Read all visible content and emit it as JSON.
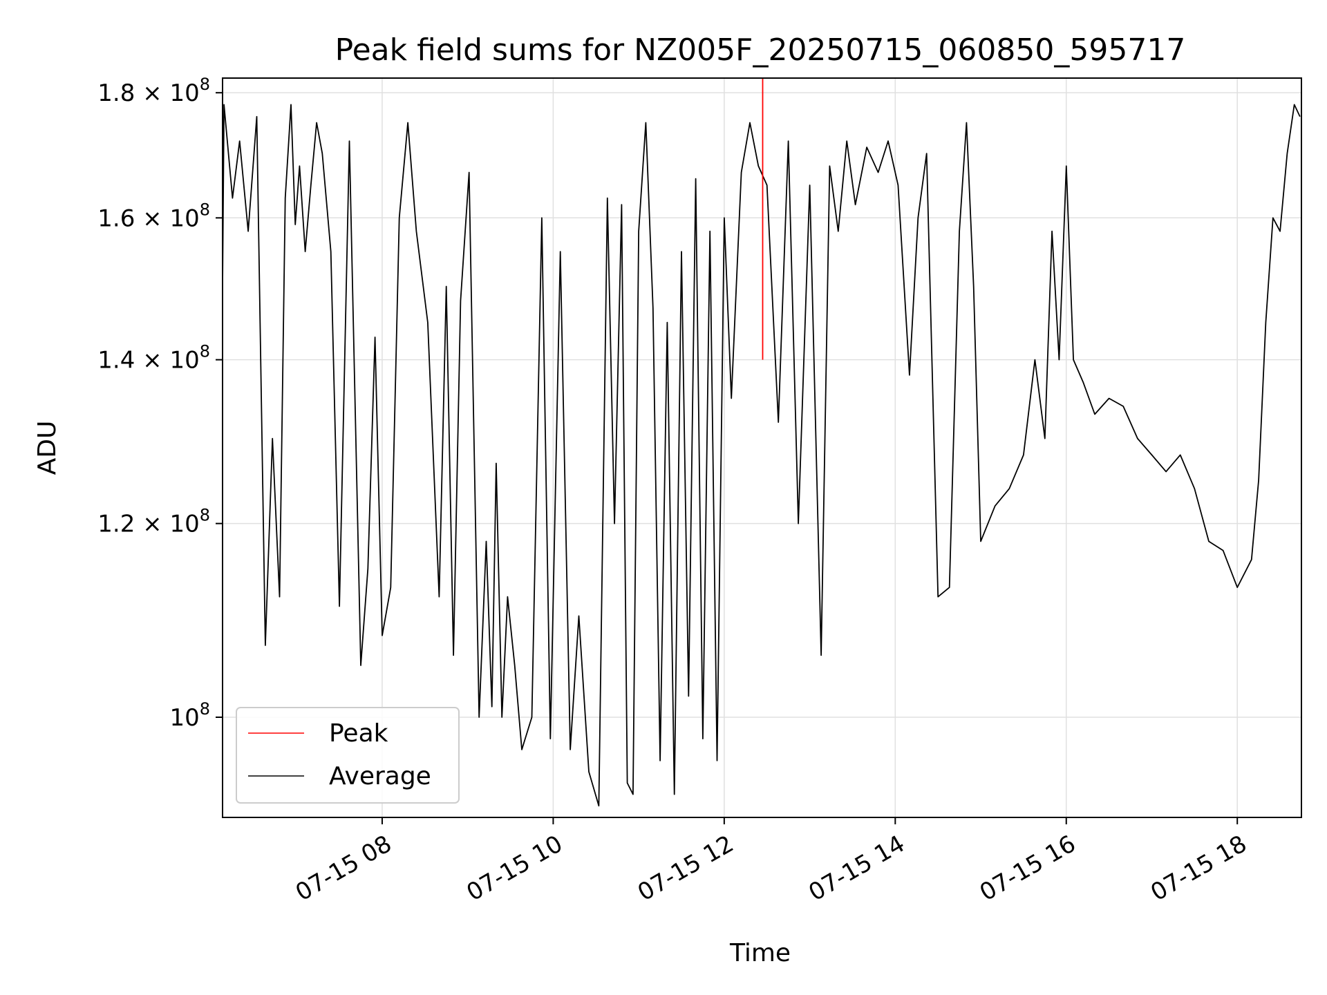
{
  "chart_data": {
    "type": "line",
    "title": "Peak field sums for NZ005F_20250715_060850_595717",
    "xlabel": "Time",
    "ylabel": "ADU",
    "yscale": "log",
    "grid": true,
    "legend_position": "lower-left",
    "xlim": [
      "2025-07-15 06:08",
      "2025-07-15 18:45"
    ],
    "ylim": [
      91000000,
      182500000
    ],
    "x_ticks": [
      "07-15 08",
      "07-15 10",
      "07-15 12",
      "07-15 14",
      "07-15 16",
      "07-15 18"
    ],
    "x_tick_values": [
      "2025-07-15 08:00",
      "2025-07-15 10:00",
      "2025-07-15 12:00",
      "2025-07-15 14:00",
      "2025-07-15 16:00",
      "2025-07-15 18:00"
    ],
    "y_ticks": [
      {
        "value": 100000000,
        "mantissa": "",
        "base": "10",
        "exp": "8"
      },
      {
        "value": 120000000,
        "mantissa": "1.2",
        "base": "10",
        "exp": "8"
      },
      {
        "value": 140000000,
        "mantissa": "1.4",
        "base": "10",
        "exp": "8"
      },
      {
        "value": 160000000,
        "mantissa": "1.6",
        "base": "10",
        "exp": "8"
      },
      {
        "value": 180000000,
        "mantissa": "1.8",
        "base": "10",
        "exp": "8"
      }
    ],
    "series": [
      {
        "name": "Peak",
        "color": "#ff0000",
        "x": [
          "2025-07-15 12:27",
          "2025-07-15 12:27",
          "2025-07-15 12:27"
        ],
        "values": [
          140000000,
          183000000,
          140000000
        ]
      },
      {
        "name": "Average",
        "color": "#000000",
        "x": [
          "2025-07-15 06:08",
          "2025-07-15 06:09",
          "2025-07-15 06:15",
          "2025-07-15 06:20",
          "2025-07-15 06:26",
          "2025-07-15 06:32",
          "2025-07-15 06:38",
          "2025-07-15 06:43",
          "2025-07-15 06:48",
          "2025-07-15 06:52",
          "2025-07-15 06:56",
          "2025-07-15 06:59",
          "2025-07-15 07:02",
          "2025-07-15 07:06",
          "2025-07-15 07:10",
          "2025-07-15 07:14",
          "2025-07-15 07:18",
          "2025-07-15 07:24",
          "2025-07-15 07:30",
          "2025-07-15 07:37",
          "2025-07-15 07:45",
          "2025-07-15 07:50",
          "2025-07-15 07:55",
          "2025-07-15 08:00",
          "2025-07-15 08:06",
          "2025-07-15 08:12",
          "2025-07-15 08:18",
          "2025-07-15 08:24",
          "2025-07-15 08:32",
          "2025-07-15 08:40",
          "2025-07-15 08:45",
          "2025-07-15 08:50",
          "2025-07-15 08:55",
          "2025-07-15 09:01",
          "2025-07-15 09:08",
          "2025-07-15 09:13",
          "2025-07-15 09:17",
          "2025-07-15 09:20",
          "2025-07-15 09:24",
          "2025-07-15 09:28",
          "2025-07-15 09:33",
          "2025-07-15 09:38",
          "2025-07-15 09:45",
          "2025-07-15 09:52",
          "2025-07-15 09:58",
          "2025-07-15 10:05",
          "2025-07-15 10:12",
          "2025-07-15 10:18",
          "2025-07-15 10:25",
          "2025-07-15 10:32",
          "2025-07-15 10:38",
          "2025-07-15 10:43",
          "2025-07-15 10:48",
          "2025-07-15 10:52",
          "2025-07-15 10:56",
          "2025-07-15 11:00",
          "2025-07-15 11:05",
          "2025-07-15 11:10",
          "2025-07-15 11:15",
          "2025-07-15 11:20",
          "2025-07-15 11:25",
          "2025-07-15 11:30",
          "2025-07-15 11:35",
          "2025-07-15 11:40",
          "2025-07-15 11:45",
          "2025-07-15 11:50",
          "2025-07-15 11:55",
          "2025-07-15 12:00",
          "2025-07-15 12:05",
          "2025-07-15 12:12",
          "2025-07-15 12:18",
          "2025-07-15 12:24",
          "2025-07-15 12:30",
          "2025-07-15 12:38",
          "2025-07-15 12:45",
          "2025-07-15 12:52",
          "2025-07-15 13:00",
          "2025-07-15 13:08",
          "2025-07-15 13:14",
          "2025-07-15 13:20",
          "2025-07-15 13:26",
          "2025-07-15 13:32",
          "2025-07-15 13:40",
          "2025-07-15 13:48",
          "2025-07-15 13:55",
          "2025-07-15 14:02",
          "2025-07-15 14:10",
          "2025-07-15 14:16",
          "2025-07-15 14:22",
          "2025-07-15 14:30",
          "2025-07-15 14:38",
          "2025-07-15 14:45",
          "2025-07-15 14:50",
          "2025-07-15 14:55",
          "2025-07-15 15:00",
          "2025-07-15 15:10",
          "2025-07-15 15:20",
          "2025-07-15 15:30",
          "2025-07-15 15:38",
          "2025-07-15 15:45",
          "2025-07-15 15:50",
          "2025-07-15 15:55",
          "2025-07-15 16:00",
          "2025-07-15 16:05",
          "2025-07-15 16:12",
          "2025-07-15 16:20",
          "2025-07-15 16:30",
          "2025-07-15 16:40",
          "2025-07-15 16:50",
          "2025-07-15 17:00",
          "2025-07-15 17:10",
          "2025-07-15 17:20",
          "2025-07-15 17:30",
          "2025-07-15 17:40",
          "2025-07-15 17:50",
          "2025-07-15 18:00",
          "2025-07-15 18:10",
          "2025-07-15 18:15",
          "2025-07-15 18:20",
          "2025-07-15 18:25",
          "2025-07-15 18:30",
          "2025-07-15 18:35",
          "2025-07-15 18:40",
          "2025-07-15 18:44"
        ],
        "values": [
          150000000,
          178000000,
          163000000,
          172000000,
          158000000,
          176000000,
          107000000,
          130000000,
          112000000,
          163000000,
          178000000,
          159000000,
          168000000,
          155000000,
          165000000,
          175000000,
          170000000,
          155000000,
          111000000,
          172000000,
          105000000,
          115000000,
          143000000,
          108000000,
          113000000,
          160000000,
          175000000,
          158000000,
          145000000,
          112000000,
          150000000,
          106000000,
          148000000,
          167000000,
          100000000,
          118000000,
          101000000,
          127000000,
          100000000,
          112000000,
          105000000,
          97000000,
          100000000,
          160000000,
          98000000,
          155000000,
          97000000,
          110000000,
          95000000,
          92000000,
          163000000,
          120000000,
          162000000,
          94000000,
          93000000,
          158000000,
          175000000,
          147000000,
          96000000,
          145000000,
          93000000,
          155000000,
          102000000,
          166000000,
          98000000,
          158000000,
          96000000,
          160000000,
          135000000,
          167000000,
          175000000,
          168000000,
          165000000,
          132000000,
          172000000,
          120000000,
          165000000,
          106000000,
          168000000,
          158000000,
          172000000,
          162000000,
          171000000,
          167000000,
          172000000,
          165000000,
          138000000,
          160000000,
          170000000,
          112000000,
          113000000,
          158000000,
          175000000,
          150000000,
          118000000,
          122000000,
          124000000,
          128000000,
          140000000,
          130000000,
          158000000,
          140000000,
          168000000,
          140000000,
          137000000,
          133000000,
          135000000,
          134000000,
          130000000,
          128000000,
          126000000,
          128000000,
          124000000,
          118000000,
          117000000,
          113000000,
          116000000,
          125000000,
          145000000,
          160000000,
          158000000,
          170000000,
          178000000,
          176000000
        ]
      }
    ]
  }
}
